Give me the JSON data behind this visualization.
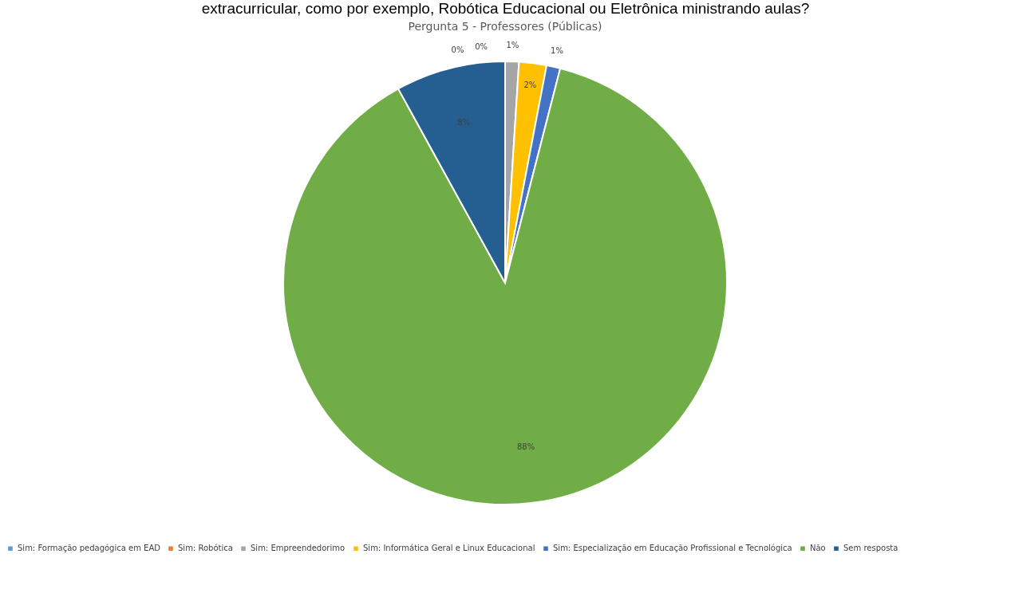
{
  "chart_data": {
    "type": "pie",
    "title": "Pergunta 5 - Professores (Públicas)",
    "annotations": [
      "extracurricular, como por exemplo, Robótica Educacional ou Eletrônica ministrando aulas?"
    ],
    "categories": [
      "Sim: Formação pedagógica em EAD",
      "Sim: Robótica",
      "Sim: Empreendedorimo",
      "Sim: Informática Geral e Linux Educacional",
      "Sim: Especialização em Educação Profissional e Tecnológica",
      "Não",
      "Sem resposta"
    ],
    "values": [
      0,
      0,
      1,
      2,
      1,
      88,
      8
    ],
    "colors": [
      "#5b9bd5",
      "#ed7d31",
      "#a5a5a5",
      "#ffc000",
      "#4472c4",
      "#70ad47",
      "#255e91"
    ],
    "value_labels": [
      "0%",
      "0%",
      "1%",
      "2%",
      "1%",
      "88%",
      "8%"
    ],
    "legend": "bottom"
  }
}
